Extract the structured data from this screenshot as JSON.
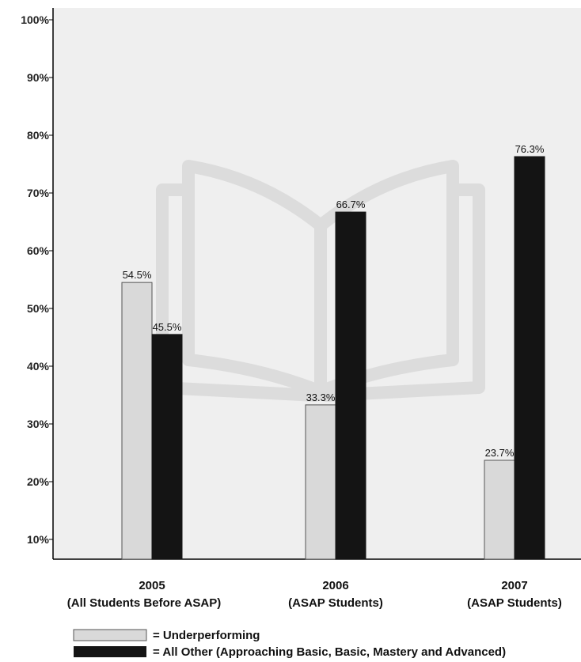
{
  "colors": {
    "plot_background": "#efefef",
    "underperforming_fill": "#d9d9d9",
    "underperforming_stroke": "#555555",
    "all_other_fill": "#141414",
    "watermark": "#dcdcdc"
  },
  "watermark": {
    "icon": "open-book-icon"
  },
  "chart_data": {
    "type": "bar",
    "title": "",
    "xlabel": "",
    "ylabel": "",
    "ylim": [
      7,
      100
    ],
    "y_ticks": [
      {
        "value": 10,
        "label": "10%"
      },
      {
        "value": 20,
        "label": "20%"
      },
      {
        "value": 30,
        "label": "30%"
      },
      {
        "value": 40,
        "label": "40%"
      },
      {
        "value": 50,
        "label": "50%"
      },
      {
        "value": 60,
        "label": "60%"
      },
      {
        "value": 70,
        "label": "70%"
      },
      {
        "value": 80,
        "label": "80%"
      },
      {
        "value": 90,
        "label": "90%"
      },
      {
        "value": 100,
        "label": "100%"
      }
    ],
    "categories": [
      {
        "line1": "2005",
        "line2": "(All Students Before ASAP)"
      },
      {
        "line1": "2006",
        "line2": "(ASAP Students)"
      },
      {
        "line1": "2007",
        "line2": "(ASAP Students)"
      }
    ],
    "series": [
      {
        "name": "Underperforming",
        "values": [
          54.5,
          33.3,
          23.7
        ],
        "labels": [
          "54.5%",
          "33.3%",
          "23.7%"
        ]
      },
      {
        "name": "All Other (Approaching Basic, Basic, Mastery and Advanced)",
        "values": [
          45.5,
          66.7,
          76.3
        ],
        "labels": [
          "45.5%",
          "66.7%",
          "76.3%"
        ]
      }
    ],
    "legend": {
      "placement": "bottom-left",
      "entries": [
        "= Underperforming",
        "= All Other (Approaching Basic, Basic, Mastery and Advanced)"
      ]
    },
    "grid": false
  }
}
